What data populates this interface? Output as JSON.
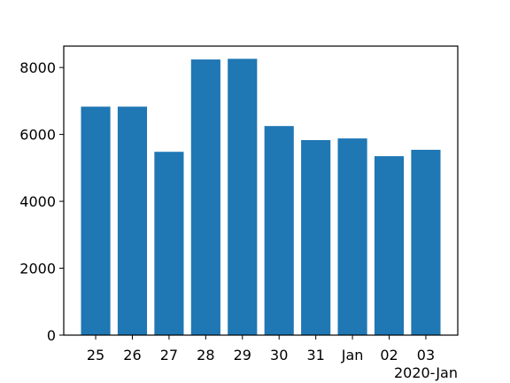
{
  "chart_data": {
    "type": "bar",
    "categories": [
      "25",
      "26",
      "27",
      "28",
      "29",
      "30",
      "31",
      "Jan",
      "02",
      "03"
    ],
    "x_offset_label": "2020-Jan",
    "values": [
      6830,
      6830,
      5480,
      8240,
      8260,
      6250,
      5830,
      5880,
      5350,
      5540
    ],
    "color": "#1f77b4",
    "ylim": [
      0,
      8640
    ],
    "yticks": [
      0,
      2000,
      4000,
      6000,
      8000
    ],
    "grid": false
  }
}
